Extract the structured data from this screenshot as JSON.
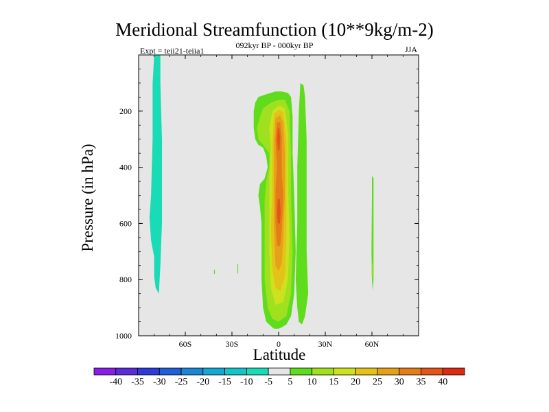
{
  "chart_data": {
    "type": "heatmap",
    "title": "Meridional Streamfunction (10**9kg/m-2)",
    "subtitle": "092kyr BP - 000kyr BP",
    "left_annotation": "Expt = teii21-teiia1",
    "right_annotation": "JJA",
    "xlabel": "Latitude",
    "ylabel": "Pressure (in hPa)",
    "xlim": [
      -90,
      90
    ],
    "ylim": [
      1000,
      0
    ],
    "x_ticks": [
      {
        "value": -60,
        "label": "60S"
      },
      {
        "value": -30,
        "label": "30S"
      },
      {
        "value": 0,
        "label": "0"
      },
      {
        "value": 30,
        "label": "30N"
      },
      {
        "value": 60,
        "label": "60N"
      }
    ],
    "y_ticks": [
      {
        "value": 200,
        "label": "200"
      },
      {
        "value": 400,
        "label": "400"
      },
      {
        "value": 600,
        "label": "600"
      },
      {
        "value": 800,
        "label": "800"
      },
      {
        "value": 1000,
        "label": "1000"
      }
    ],
    "background_color": "#e6e6e6",
    "colorbar": {
      "labels": [
        "-40",
        "-35",
        "-30",
        "-25",
        "-20",
        "-15",
        "-10",
        "-5",
        "5",
        "10",
        "15",
        "20",
        "25",
        "30",
        "35",
        "40"
      ],
      "colors": [
        "#8a1ee6",
        "#5a2bd6",
        "#2f3bd9",
        "#1f5fd8",
        "#1b86d4",
        "#17a8d2",
        "#14c4c8",
        "#19dbb5",
        "#e6e6e6",
        "#5fdc1c",
        "#9fe11e",
        "#cde11e",
        "#e3c21a",
        "#e4a119",
        "#e47c18",
        "#e25418",
        "#de2a14"
      ]
    },
    "contours": [
      {
        "name": "west-negative-band",
        "level": -5,
        "color": "#19dbb5",
        "points": [
          [
            -80,
            0
          ],
          [
            -76,
            0
          ],
          [
            -76,
            100
          ],
          [
            -75,
            300
          ],
          [
            -75,
            600
          ],
          [
            -76,
            750
          ],
          [
            -77,
            850
          ],
          [
            -79,
            830
          ],
          [
            -80,
            790
          ],
          [
            -80,
            720
          ],
          [
            -82,
            660
          ],
          [
            -83,
            580
          ],
          [
            -82,
            500
          ],
          [
            -81,
            300
          ],
          [
            -81,
            100
          ]
        ]
      },
      {
        "name": "east-positive-5",
        "level": 5,
        "color": "#5fdc1c",
        "points": [
          [
            -15,
            170
          ],
          [
            -13,
            150
          ],
          [
            -8,
            140
          ],
          [
            -2,
            130
          ],
          [
            2,
            130
          ],
          [
            6,
            135
          ],
          [
            8,
            150
          ],
          [
            9,
            220
          ],
          [
            9,
            350
          ],
          [
            10,
            500
          ],
          [
            11,
            700
          ],
          [
            10,
            850
          ],
          [
            8,
            930
          ],
          [
            5,
            960
          ],
          [
            2,
            970
          ],
          [
            0,
            975
          ],
          [
            -3,
            975
          ],
          [
            -5,
            965
          ],
          [
            -8,
            950
          ],
          [
            -10,
            900
          ],
          [
            -11,
            800
          ],
          [
            -11,
            700
          ],
          [
            -11,
            600
          ],
          [
            -12,
            540
          ],
          [
            -13,
            500
          ],
          [
            -12,
            460
          ],
          [
            -9,
            440
          ],
          [
            -7,
            400
          ],
          [
            -8,
            360
          ],
          [
            -10,
            330
          ],
          [
            -13,
            320
          ],
          [
            -15,
            300
          ],
          [
            -16,
            260
          ],
          [
            -16,
            200
          ]
        ]
      },
      {
        "name": "east-positive-5-b",
        "level": 5,
        "color": "#5fdc1c",
        "points": [
          [
            14,
            100
          ],
          [
            16,
            108
          ],
          [
            17,
            150
          ],
          [
            18,
            300
          ],
          [
            18,
            500
          ],
          [
            18,
            700
          ],
          [
            19,
            850
          ],
          [
            17,
            930
          ],
          [
            15,
            960
          ],
          [
            13,
            950
          ],
          [
            12,
            900
          ],
          [
            11,
            800
          ],
          [
            12,
            600
          ],
          [
            12,
            400
          ],
          [
            13,
            200
          ]
        ]
      },
      {
        "name": "east-positive-10",
        "level": 10,
        "color": "#9fe11e",
        "points": [
          [
            -12,
            220
          ],
          [
            -10,
            190
          ],
          [
            -5,
            170
          ],
          [
            0,
            160
          ],
          [
            4,
            160
          ],
          [
            7,
            200
          ],
          [
            8,
            350
          ],
          [
            8,
            500
          ],
          [
            9,
            700
          ],
          [
            8,
            850
          ],
          [
            5,
            930
          ],
          [
            0,
            950
          ],
          [
            -4,
            940
          ],
          [
            -7,
            900
          ],
          [
            -9,
            800
          ],
          [
            -9,
            650
          ],
          [
            -9,
            520
          ],
          [
            -8,
            450
          ],
          [
            -6,
            400
          ],
          [
            -6,
            350
          ],
          [
            -10,
            320
          ],
          [
            -13,
            300
          ],
          [
            -14,
            260
          ]
        ]
      },
      {
        "name": "east-positive-15",
        "level": 15,
        "color": "#cde11e",
        "points": [
          [
            -4,
            200
          ],
          [
            0,
            180
          ],
          [
            4,
            190
          ],
          [
            6,
            280
          ],
          [
            6,
            450
          ],
          [
            7,
            650
          ],
          [
            6,
            800
          ],
          [
            3,
            880
          ],
          [
            -2,
            890
          ],
          [
            -5,
            830
          ],
          [
            -6,
            700
          ],
          [
            -6,
            550
          ],
          [
            -6,
            430
          ],
          [
            -5,
            330
          ],
          [
            -6,
            260
          ]
        ]
      },
      {
        "name": "east-positive-20",
        "level": 20,
        "color": "#e3c21a",
        "points": [
          [
            -3,
            210
          ],
          [
            0,
            195
          ],
          [
            3,
            205
          ],
          [
            5,
            300
          ],
          [
            5,
            450
          ],
          [
            5,
            650
          ],
          [
            4,
            790
          ],
          [
            1,
            840
          ],
          [
            -2,
            830
          ],
          [
            -4,
            760
          ],
          [
            -5,
            620
          ],
          [
            -4,
            470
          ],
          [
            -4,
            320
          ]
        ]
      },
      {
        "name": "east-positive-25",
        "level": 25,
        "color": "#e4a119",
        "points": [
          [
            -2,
            225
          ],
          [
            1,
            215
          ],
          [
            3,
            240
          ],
          [
            4,
            350
          ],
          [
            4,
            500
          ],
          [
            3,
            650
          ],
          [
            2,
            740
          ],
          [
            0,
            770
          ],
          [
            -2,
            750
          ],
          [
            -3,
            620
          ],
          [
            -3,
            450
          ],
          [
            -3,
            320
          ]
        ]
      },
      {
        "name": "east-positive-30",
        "level": 30,
        "color": "#e47c18",
        "points": [
          [
            -1,
            240
          ],
          [
            1,
            240
          ],
          [
            2,
            290
          ],
          [
            2,
            420
          ],
          [
            3,
            500
          ],
          [
            2,
            620
          ],
          [
            1,
            680
          ],
          [
            -1,
            680
          ],
          [
            -2,
            600
          ],
          [
            -2,
            480
          ],
          [
            -1,
            400
          ],
          [
            -2,
            300
          ]
        ]
      },
      {
        "name": "core-35-upper",
        "level": 35,
        "color": "#e25418",
        "points": [
          [
            -0.5,
            260
          ],
          [
            0.5,
            262
          ],
          [
            1,
            300
          ],
          [
            0.5,
            340
          ],
          [
            -0.5,
            340
          ],
          [
            -1,
            300
          ]
        ]
      },
      {
        "name": "core-35-lower",
        "level": 35,
        "color": "#e25418",
        "points": [
          [
            -0.5,
            510
          ],
          [
            0.8,
            515
          ],
          [
            1.3,
            560
          ],
          [
            0.8,
            600
          ],
          [
            -0.5,
            600
          ],
          [
            -1,
            560
          ]
        ]
      },
      {
        "name": "nh-positive-strip",
        "level": 5,
        "color": "#5fdc1c",
        "points": [
          [
            60,
            430
          ],
          [
            61,
            440
          ],
          [
            61,
            700
          ],
          [
            61,
            800
          ],
          [
            60.5,
            840
          ],
          [
            60,
            800
          ],
          [
            59.7,
            700
          ],
          [
            60,
            500
          ]
        ]
      },
      {
        "name": "nh-positive-strip-inner",
        "level": 10,
        "color": "#9fe11e",
        "points": [
          [
            60,
            740
          ],
          [
            60.5,
            745
          ],
          [
            60.5,
            790
          ],
          [
            60,
            800
          ],
          [
            59.8,
            770
          ]
        ]
      },
      {
        "name": "west-positive-speck-a",
        "level": 5,
        "color": "#5fdc1c",
        "points": [
          [
            -26.5,
            745
          ],
          [
            -26,
            745
          ],
          [
            -26,
            775
          ],
          [
            -26.5,
            780
          ]
        ]
      },
      {
        "name": "west-positive-speck-b",
        "level": 5,
        "color": "#5fdc1c",
        "points": [
          [
            -41.5,
            765
          ],
          [
            -41,
            765
          ],
          [
            -41,
            780
          ],
          [
            -41.5,
            780
          ]
        ]
      }
    ]
  }
}
